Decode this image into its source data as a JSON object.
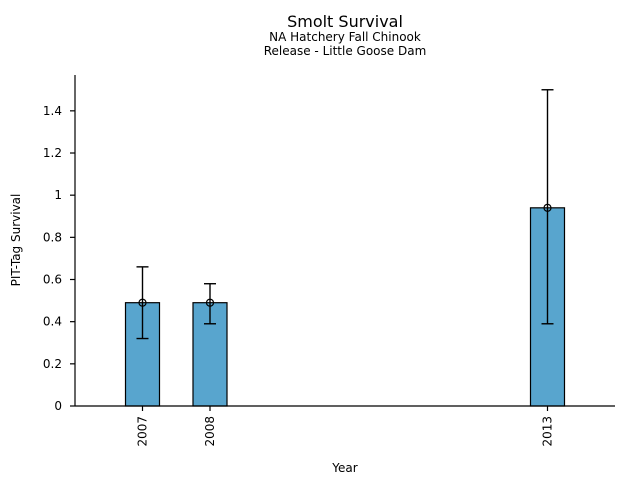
{
  "chart_data": {
    "type": "bar",
    "title": "Smolt Survival",
    "subtitle1": "NA Hatchery Fall Chinook",
    "subtitle2": "Release - Little Goose Dam",
    "xlabel": "Year",
    "ylabel": "PIT-Tag Survival",
    "categories": [
      "2007",
      "2008",
      "2013"
    ],
    "x_years": [
      2007,
      2008,
      2013
    ],
    "values": [
      0.49,
      0.49,
      0.94
    ],
    "error_low": [
      0.32,
      0.39,
      0.39
    ],
    "error_high": [
      0.66,
      0.58,
      1.5
    ],
    "ytick_values": [
      0,
      0.2,
      0.4,
      0.6,
      0.8,
      1,
      1.2,
      1.4
    ],
    "ytick_labels": [
      "0",
      "0.2",
      "0.4",
      "0.6",
      "0.8",
      "1",
      "1.2",
      "1.4"
    ],
    "ylim": [
      0,
      1.57
    ],
    "xlim": [
      2006,
      2014
    ],
    "grid": "off",
    "legend": "none",
    "colors": {
      "bar_fill": "#58A5CE",
      "bar_edge": "#000000",
      "error_bar": "#000000",
      "marker_edge": "#000000",
      "axis": "#000000",
      "text": "#000000",
      "background": "#ffffff"
    }
  }
}
